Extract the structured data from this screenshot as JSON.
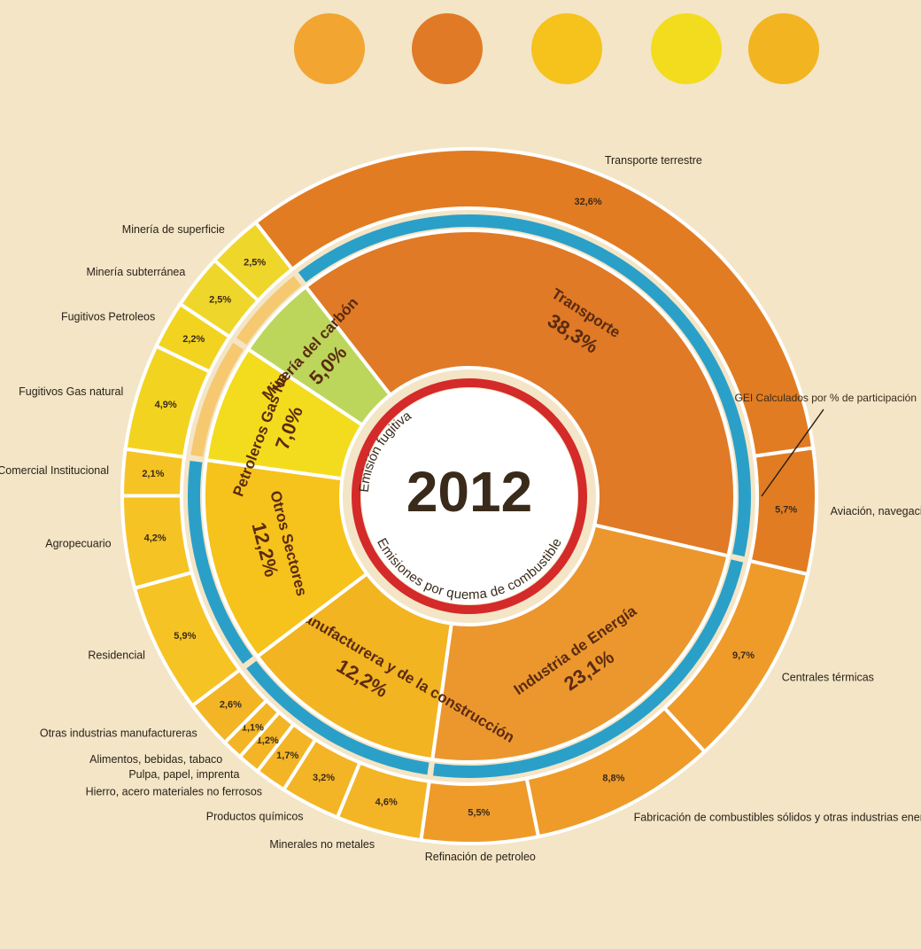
{
  "chart_data": {
    "type": "sunburst",
    "title": "2012",
    "ring_labels": [
      "Emisiones por quema de combustible",
      "Emisión fugitiva"
    ],
    "annotation": "GEI Calculados por % de participación",
    "categories": [
      "Transporte",
      "Industria de Energía",
      "Industria Manufacturera y de la construcción",
      "Otros Sectores",
      "Petroleros Gas Natural",
      "Minería del carbón"
    ],
    "values": [
      38.3,
      23.1,
      12.2,
      12.2,
      7.0,
      5.0
    ],
    "value_labels": [
      "38,3%",
      "23,1%",
      "12,2%",
      "12,2%",
      "7,0%",
      "5,0%"
    ],
    "colors": [
      "#e07a26",
      "#ec972e",
      "#f2b420",
      "#f6c21c",
      "#f3dc1e",
      "#bcd65c"
    ],
    "children": [
      {
        "categories": [
          "Transporte terrestre",
          "Aviación, navegación nacional, ferrocarriles"
        ],
        "values": [
          32.6,
          5.7
        ],
        "value_labels": [
          "32,6%",
          "5,7%"
        ]
      },
      {
        "categories": [
          "Centrales térmicas",
          "Fabricación de combustibles sólidos y otras industrias energéticas",
          "Refinación de petroleo"
        ],
        "values": [
          9.7,
          8.8,
          5.5
        ],
        "value_labels": [
          "9,7%",
          "8,8%",
          "5,5%"
        ]
      },
      {
        "categories": [
          "Minerales no metales",
          "Productos químicos",
          "Hierro, acero materiales no ferrosos",
          "Pulpa, papel, imprenta",
          "Alimentos, bebidas, tabaco",
          "Otras industrias manufactureras"
        ],
        "values": [
          4.6,
          3.2,
          1.7,
          1.2,
          1.1,
          2.6
        ],
        "value_labels": [
          "4,6%",
          "3,2%",
          "1,7%",
          "1,2%",
          "1,1%",
          "2,6%"
        ]
      },
      {
        "categories": [
          "Residencial",
          "Agropecuario",
          "Comercial Institucional"
        ],
        "values": [
          5.9,
          4.2,
          2.1
        ],
        "value_labels": [
          "5,9%",
          "4,2%",
          "2,1%"
        ]
      },
      {
        "categories": [
          "Fugitivos Gas natural",
          "Fugitivos Petroleos"
        ],
        "values": [
          4.9,
          2.2
        ],
        "value_labels": [
          "4,9%",
          "2,2%"
        ]
      },
      {
        "categories": [
          "Minería subterránea",
          "Minería de superficie"
        ],
        "values": [
          2.5,
          2.5
        ],
        "value_labels": [
          "2,5%",
          "2,5%"
        ]
      }
    ]
  }
}
